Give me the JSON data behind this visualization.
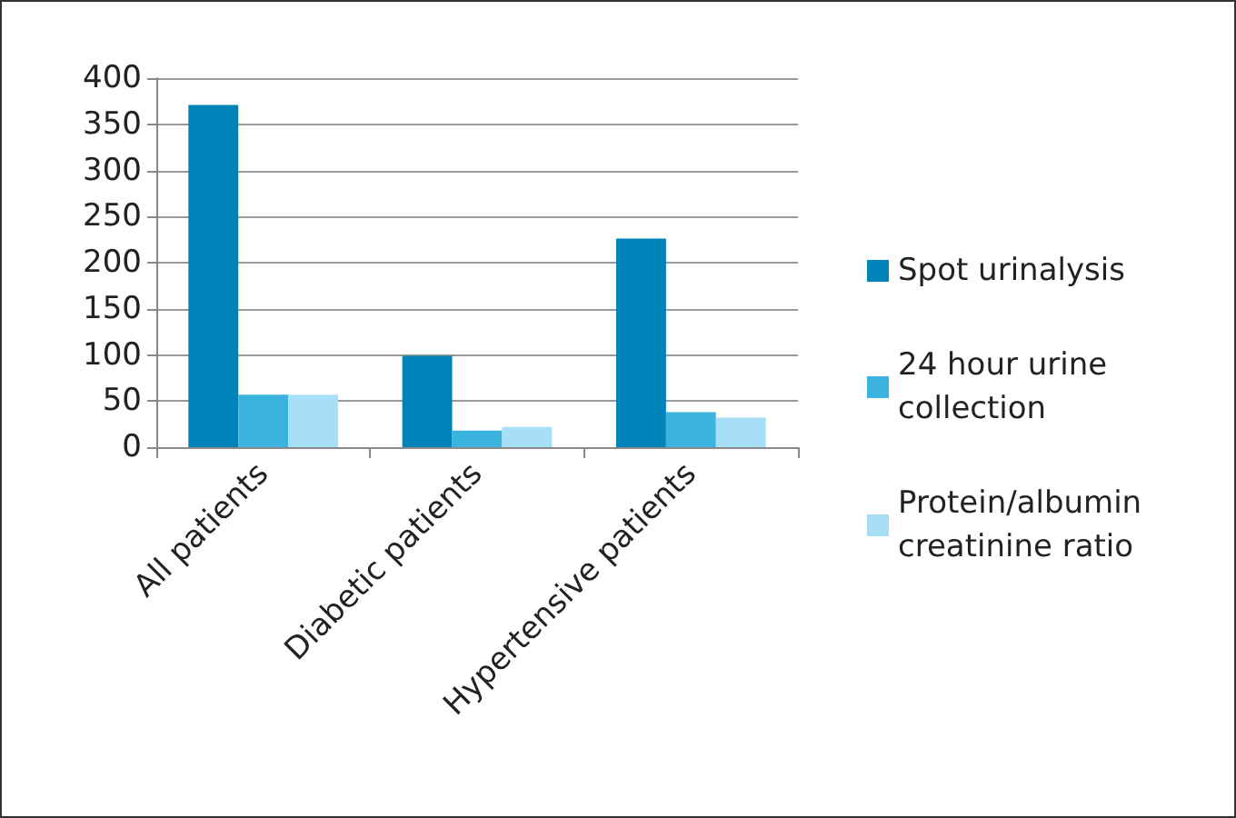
{
  "chart_data": {
    "type": "bar",
    "categories": [
      "All patients",
      "Diabetic patients",
      "Hypertensive patients"
    ],
    "series": [
      {
        "name": "Spot urinalysis",
        "color": "#0083b8",
        "values": [
          371,
          99,
          226
        ]
      },
      {
        "name": "24 hour urine collection",
        "color": "#3ab4de",
        "values": [
          57,
          18,
          38
        ]
      },
      {
        "name": "Protein/albumin creatinine ratio",
        "color": "#a8dff8",
        "values": [
          57,
          22,
          32
        ]
      }
    ],
    "ylim": [
      0,
      400
    ],
    "yticks": [
      0,
      50,
      100,
      150,
      200,
      250,
      300,
      350,
      400
    ],
    "grid": "y",
    "legend": "right"
  }
}
